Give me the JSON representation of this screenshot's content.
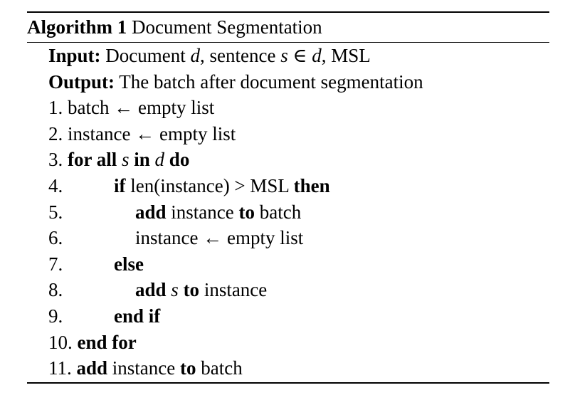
{
  "algorithm": {
    "caption_label": "Algorithm 1",
    "caption_title": "Document Segmentation",
    "lines": [
      {
        "num": "",
        "indent": 0,
        "io": true,
        "parts": [
          {
            "text": "Input:",
            "style": "b"
          },
          {
            "text": " Document ",
            "style": ""
          },
          {
            "text": "d",
            "style": "i"
          },
          {
            "text": ", sentence ",
            "style": ""
          },
          {
            "text": "s",
            "style": "i"
          },
          {
            "text": " ∈ ",
            "style": ""
          },
          {
            "text": "d",
            "style": "i"
          },
          {
            "text": ", MSL",
            "style": ""
          }
        ]
      },
      {
        "num": "",
        "indent": 0,
        "io": true,
        "parts": [
          {
            "text": "Output:",
            "style": "b"
          },
          {
            "text": " The batch after document segmentation",
            "style": ""
          }
        ]
      },
      {
        "num": "1.",
        "indent": 0,
        "io": false,
        "parts": [
          {
            "text": "batch ← empty list",
            "style": ""
          }
        ]
      },
      {
        "num": "2.",
        "indent": 0,
        "io": false,
        "parts": [
          {
            "text": "instance ← empty list",
            "style": ""
          }
        ]
      },
      {
        "num": "3.",
        "indent": 0,
        "io": false,
        "parts": [
          {
            "text": "for all",
            "style": "b"
          },
          {
            "text": " ",
            "style": ""
          },
          {
            "text": "s",
            "style": "i"
          },
          {
            "text": " ",
            "style": ""
          },
          {
            "text": "in",
            "style": "b"
          },
          {
            "text": " ",
            "style": ""
          },
          {
            "text": "d",
            "style": "i"
          },
          {
            "text": " ",
            "style": ""
          },
          {
            "text": "do",
            "style": "b"
          }
        ]
      },
      {
        "num": "4.",
        "indent": 1,
        "io": false,
        "parts": [
          {
            "text": "if",
            "style": "b"
          },
          {
            "text": " len(instance) > MSL ",
            "style": ""
          },
          {
            "text": "then",
            "style": "b"
          }
        ]
      },
      {
        "num": "5.",
        "indent": 2,
        "io": false,
        "parts": [
          {
            "text": "add",
            "style": "b"
          },
          {
            "text": " instance ",
            "style": ""
          },
          {
            "text": "to",
            "style": "b"
          },
          {
            "text": " batch",
            "style": ""
          }
        ]
      },
      {
        "num": "6.",
        "indent": 2,
        "io": false,
        "parts": [
          {
            "text": "instance ← empty list",
            "style": ""
          }
        ]
      },
      {
        "num": "7.",
        "indent": 1,
        "io": false,
        "parts": [
          {
            "text": "else",
            "style": "b"
          }
        ]
      },
      {
        "num": "8.",
        "indent": 2,
        "io": false,
        "parts": [
          {
            "text": "add",
            "style": "b"
          },
          {
            "text": " ",
            "style": ""
          },
          {
            "text": "s",
            "style": "i"
          },
          {
            "text": " ",
            "style": ""
          },
          {
            "text": "to",
            "style": "b"
          },
          {
            "text": " instance",
            "style": ""
          }
        ]
      },
      {
        "num": "9.",
        "indent": 1,
        "io": false,
        "parts": [
          {
            "text": "end if",
            "style": "b"
          }
        ]
      },
      {
        "num": "10.",
        "indent": 0,
        "io": false,
        "parts": [
          {
            "text": "end for",
            "style": "b"
          }
        ]
      },
      {
        "num": "11.",
        "indent": 0,
        "io": false,
        "parts": [
          {
            "text": "add",
            "style": "b"
          },
          {
            "text": " instance ",
            "style": ""
          },
          {
            "text": "to",
            "style": "b"
          },
          {
            "text": " batch",
            "style": ""
          }
        ]
      }
    ]
  }
}
